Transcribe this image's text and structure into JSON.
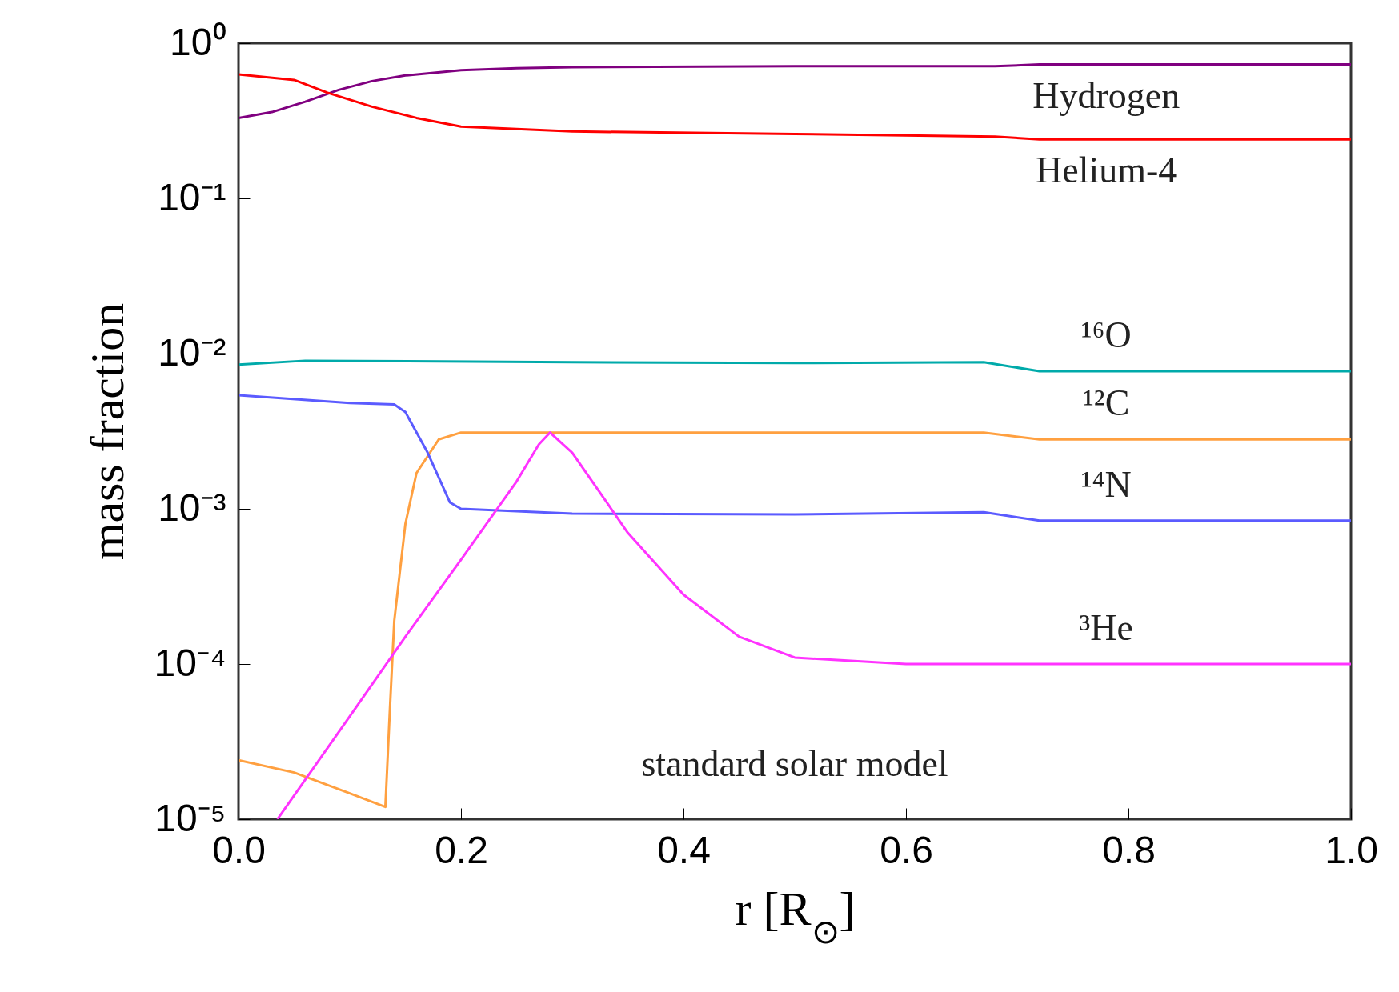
{
  "chart_data": {
    "type": "line",
    "xlabel": "r [R$_{⊙}$]",
    "ylabel": "mass fraction",
    "log": "y",
    "grid": false,
    "legend": false,
    "marker": "none",
    "line_style": "solid",
    "xlim": [
      0,
      1
    ],
    "xticks": [
      {
        "value": 0,
        "label": "0.0"
      },
      0.2,
      0.4,
      0.6,
      0.8,
      {
        "value": 1,
        "label": "1.0"
      }
    ],
    "ylim": [
      1e-05,
      1
    ],
    "yticks": [
      {
        "value": 1e-05,
        "label": "10⁻⁵"
      },
      {
        "value": 0.0001,
        "label": "10⁻⁴"
      },
      {
        "value": 0.001,
        "label": "10⁻³"
      },
      {
        "value": 0.01,
        "label": "10⁻²"
      },
      {
        "value": 0.1,
        "label": "10⁻¹"
      },
      {
        "value": 1,
        "label": "10⁰"
      }
    ],
    "annotations": [
      "standard solar model"
    ],
    "series": [
      {
        "name": "Hydrogen",
        "color": "#800080",
        "x": [
          0,
          0.03,
          0.06,
          0.09,
          0.12,
          0.15,
          0.2,
          0.25,
          0.3,
          0.5,
          0.68,
          0.72,
          1
        ],
        "values": [
          0.33,
          0.36,
          0.42,
          0.5,
          0.57,
          0.62,
          0.67,
          0.69,
          0.7,
          0.71,
          0.71,
          0.73,
          0.73
        ]
      },
      {
        "name": "Helium-4",
        "color": "#ff0000",
        "x": [
          0,
          0.05,
          0.08,
          0.12,
          0.16,
          0.2,
          0.3,
          0.5,
          0.68,
          0.72,
          1
        ],
        "values": [
          0.63,
          0.58,
          0.48,
          0.39,
          0.33,
          0.29,
          0.27,
          0.26,
          0.25,
          0.24,
          0.24
        ]
      },
      {
        "name": "¹⁶O",
        "color": "#00aaaa",
        "x": [
          0,
          0.06,
          0.3,
          0.5,
          0.67,
          0.72,
          1
        ],
        "values": [
          0.0085,
          0.009,
          0.0088,
          0.0087,
          0.0088,
          0.0077,
          0.0077
        ]
      },
      {
        "name": "¹²C",
        "color": "#ffa040",
        "x": [
          0,
          0.05,
          0.1,
          0.132,
          0.136,
          0.14,
          0.15,
          0.16,
          0.18,
          0.2,
          0.3,
          0.67,
          0.72,
          1
        ],
        "values": [
          2.4e-05,
          2e-05,
          1.47e-05,
          1.2e-05,
          5e-05,
          0.00019,
          0.0008,
          0.0017,
          0.0028,
          0.0031,
          0.0031,
          0.0031,
          0.0028,
          0.0028
        ]
      },
      {
        "name": "¹⁴N",
        "color": "#5b5bff",
        "x": [
          0,
          0.1,
          0.14,
          0.15,
          0.17,
          0.19,
          0.2,
          0.3,
          0.5,
          0.67,
          0.72,
          1
        ],
        "values": [
          0.0054,
          0.0048,
          0.0047,
          0.0042,
          0.0023,
          0.0011,
          0.001,
          0.00093,
          0.00092,
          0.00095,
          0.00084,
          0.00084
        ]
      },
      {
        "name": "³He",
        "color": "#ff33ff",
        "x": [
          0.035,
          0.1,
          0.15,
          0.2,
          0.25,
          0.27,
          0.28,
          0.3,
          0.35,
          0.4,
          0.45,
          0.5,
          0.6,
          1
        ],
        "values": [
          1e-05,
          4.6e-05,
          0.00015,
          0.00047,
          0.0015,
          0.0026,
          0.0031,
          0.0023,
          0.0007,
          0.00028,
          0.00015,
          0.00011,
          0.0001,
          0.0001
        ]
      }
    ]
  }
}
